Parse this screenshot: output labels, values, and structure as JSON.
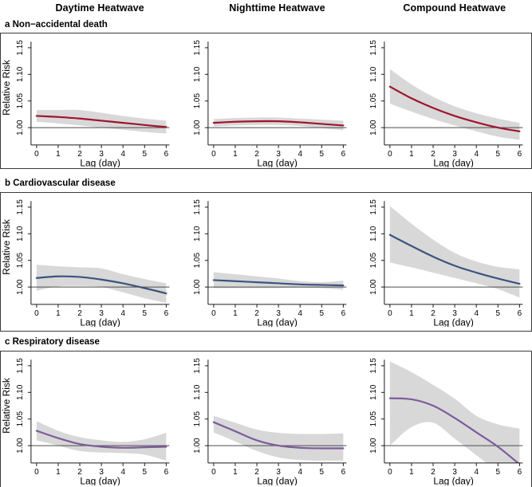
{
  "figure": {
    "column_headers": [
      "Daytime Heatwave",
      "Nighttime Heatwave",
      "Compound Heatwave"
    ],
    "row_labels": [
      {
        "prefix": "a",
        "text": "Non−accidental death"
      },
      {
        "prefix": "b",
        "text": "Cardiovascular disease"
      },
      {
        "prefix": "c",
        "text": "Respiratory disease"
      }
    ],
    "axis": {
      "xlabel": "Lag (day)",
      "ylabel": "Relative Risk",
      "xticks": [
        "0",
        "1",
        "2",
        "3",
        "4",
        "5",
        "6"
      ],
      "yticks": [
        "1.00",
        "1.05",
        "1.10",
        "1.15"
      ]
    },
    "colors": {
      "row_a_line": "#A0142D",
      "row_b_line": "#3B5480",
      "row_c_line": "#7D5C9C",
      "ci_band": "#D8D8D8",
      "ref_line": "#4d4d4d",
      "axis": "#1a1a1a",
      "border": "#3a3a3a"
    }
  },
  "chart_data": [
    {
      "type": "line",
      "panel": "a-daytime",
      "row": "a Non−accidental death",
      "column": "Daytime Heatwave",
      "x": [
        0,
        1,
        2,
        3,
        4,
        5,
        6
      ],
      "y": [
        1.022,
        1.02,
        1.017,
        1.013,
        1.009,
        1.005,
        1.001
      ],
      "ci_lower": [
        1.011,
        1.008,
        1.004,
        1.0,
        0.996,
        0.992,
        0.989
      ],
      "ci_upper": [
        1.033,
        1.033,
        1.033,
        1.028,
        1.022,
        1.017,
        1.013
      ],
      "line_color": "#A0142D",
      "band_color": "#D8D8D8",
      "xlabel": "Lag (day)",
      "ylabel": "Relative Risk",
      "xlim": [
        0,
        6
      ],
      "ylim": [
        0.9675,
        1.1585
      ],
      "ref_line": 1.0,
      "show_ylabel": true
    },
    {
      "type": "line",
      "panel": "a-nighttime",
      "row": "a Non−accidental death",
      "column": "Nighttime Heatwave",
      "x": [
        0,
        1,
        2,
        3,
        4,
        5,
        6
      ],
      "y": [
        1.009,
        1.011,
        1.012,
        1.012,
        1.01,
        1.007,
        1.004
      ],
      "ci_lower": [
        1.002,
        1.004,
        1.005,
        1.005,
        1.003,
        0.999,
        0.995
      ],
      "ci_upper": [
        1.016,
        1.018,
        1.019,
        1.019,
        1.017,
        1.015,
        1.013
      ],
      "line_color": "#A0142D",
      "band_color": "#D8D8D8",
      "xlabel": "Lag (day)",
      "ylabel": "Relative Risk",
      "xlim": [
        0,
        6
      ],
      "ylim": [
        0.9675,
        1.1585
      ],
      "ref_line": 1.0,
      "show_ylabel": false
    },
    {
      "type": "line",
      "panel": "a-compound",
      "row": "a Non−accidental death",
      "column": "Compound Heatwave",
      "x": [
        0,
        1,
        2,
        3,
        4,
        5,
        6
      ],
      "y": [
        1.077,
        1.055,
        1.037,
        1.022,
        1.01,
        1.0,
        0.993
      ],
      "ci_lower": [
        1.045,
        1.03,
        1.016,
        1.004,
        0.993,
        0.983,
        0.977
      ],
      "ci_upper": [
        1.11,
        1.081,
        1.058,
        1.04,
        1.027,
        1.017,
        1.009
      ],
      "line_color": "#A0142D",
      "band_color": "#D8D8D8",
      "xlabel": "Lag (day)",
      "ylabel": "Relative Risk",
      "xlim": [
        0,
        6
      ],
      "ylim": [
        0.9675,
        1.1585
      ],
      "ref_line": 1.0,
      "show_ylabel": false
    },
    {
      "type": "line",
      "panel": "b-daytime",
      "row": "b Cardiovascular disease",
      "column": "Daytime Heatwave",
      "x": [
        0,
        1,
        2,
        3,
        4,
        5,
        6
      ],
      "y": [
        1.017,
        1.02,
        1.019,
        1.014,
        1.007,
        0.998,
        0.988
      ],
      "ci_lower": [
        0.993,
        1.001,
        1.002,
        1.0,
        0.99,
        0.979,
        0.97
      ],
      "ci_upper": [
        1.042,
        1.039,
        1.037,
        1.035,
        1.024,
        1.015,
        1.007
      ],
      "line_color": "#3B5480",
      "band_color": "#D8D8D8",
      "xlabel": "Lag (day)",
      "ylabel": "Relative Risk",
      "xlim": [
        0,
        6
      ],
      "ylim": [
        0.9675,
        1.1585
      ],
      "ref_line": 1.0,
      "show_ylabel": true
    },
    {
      "type": "line",
      "panel": "b-nighttime",
      "row": "b Cardiovascular disease",
      "column": "Nighttime Heatwave",
      "x": [
        0,
        1,
        2,
        3,
        4,
        5,
        6
      ],
      "y": [
        1.013,
        1.011,
        1.009,
        1.007,
        1.005,
        1.004,
        1.003
      ],
      "ci_lower": [
        0.998,
        0.998,
        0.998,
        0.998,
        0.999,
        0.998,
        0.995
      ],
      "ci_upper": [
        1.028,
        1.024,
        1.02,
        1.016,
        1.011,
        1.009,
        1.012
      ],
      "line_color": "#3B5480",
      "band_color": "#D8D8D8",
      "xlabel": "Lag (day)",
      "ylabel": "Relative Risk",
      "xlim": [
        0,
        6
      ],
      "ylim": [
        0.9675,
        1.1585
      ],
      "ref_line": 1.0,
      "show_ylabel": false
    },
    {
      "type": "line",
      "panel": "b-compound",
      "row": "b Cardiovascular disease",
      "column": "Compound Heatwave",
      "x": [
        0,
        1,
        2,
        3,
        4,
        5,
        6
      ],
      "y": [
        1.098,
        1.077,
        1.057,
        1.04,
        1.027,
        1.016,
        1.006
      ],
      "ci_lower": [
        1.046,
        1.037,
        1.027,
        1.017,
        1.007,
        0.996,
        0.98
      ],
      "ci_upper": [
        1.152,
        1.119,
        1.089,
        1.064,
        1.048,
        1.038,
        1.033
      ],
      "line_color": "#3B5480",
      "band_color": "#D8D8D8",
      "xlabel": "Lag (day)",
      "ylabel": "Relative Risk",
      "xlim": [
        0,
        6
      ],
      "ylim": [
        0.9675,
        1.1585
      ],
      "ref_line": 1.0,
      "show_ylabel": false
    },
    {
      "type": "line",
      "panel": "c-daytime",
      "row": "c Respiratory disease",
      "column": "Daytime Heatwave",
      "x": [
        0,
        1,
        2,
        3,
        4,
        5,
        6
      ],
      "y": [
        1.028,
        1.014,
        1.003,
        0.998,
        0.996,
        0.997,
        0.998
      ],
      "ci_lower": [
        1.01,
        1.0,
        0.99,
        0.987,
        0.986,
        0.983,
        0.972
      ],
      "ci_upper": [
        1.046,
        1.028,
        1.016,
        1.01,
        1.007,
        1.012,
        1.024
      ],
      "line_color": "#7D5C9C",
      "band_color": "#D8D8D8",
      "xlabel": "Lag (day)",
      "ylabel": "Relative Risk",
      "xlim": [
        0,
        6
      ],
      "ylim": [
        0.9675,
        1.1585
      ],
      "ref_line": 1.0,
      "show_ylabel": true
    },
    {
      "type": "line",
      "panel": "c-nighttime",
      "row": "c Respiratory disease",
      "column": "Nighttime Heatwave",
      "x": [
        0,
        1,
        2,
        3,
        4,
        5,
        6
      ],
      "y": [
        1.044,
        1.027,
        1.01,
        1.0,
        0.996,
        0.995,
        0.995
      ],
      "ci_lower": [
        1.025,
        1.008,
        0.99,
        0.978,
        0.973,
        0.972,
        0.972
      ],
      "ci_upper": [
        1.056,
        1.043,
        1.03,
        1.024,
        1.022,
        1.022,
        1.023
      ],
      "line_color": "#7D5C9C",
      "band_color": "#D8D8D8",
      "xlabel": "Lag (day)",
      "ylabel": "Relative Risk",
      "xlim": [
        0,
        6
      ],
      "ylim": [
        0.9675,
        1.1585
      ],
      "ref_line": 1.0,
      "show_ylabel": false
    },
    {
      "type": "line",
      "panel": "c-compound",
      "row": "c Respiratory disease",
      "column": "Compound Heatwave",
      "x": [
        0,
        1,
        2,
        3,
        4,
        5,
        6
      ],
      "y": [
        1.089,
        1.087,
        1.075,
        1.052,
        1.025,
        0.998,
        0.965
      ],
      "ci_lower": [
        1.0,
        1.035,
        1.043,
        1.013,
        0.982,
        0.95,
        0.915
      ],
      "ci_upper": [
        1.158,
        1.138,
        1.114,
        1.088,
        1.056,
        1.04,
        1.032
      ],
      "line_color": "#7D5C9C",
      "band_color": "#D8D8D8",
      "xlabel": "Lag (day)",
      "ylabel": "Relative Risk",
      "xlim": [
        0,
        6
      ],
      "ylim": [
        0.9675,
        1.1585
      ],
      "ref_line": 1.0,
      "show_ylabel": false
    }
  ]
}
